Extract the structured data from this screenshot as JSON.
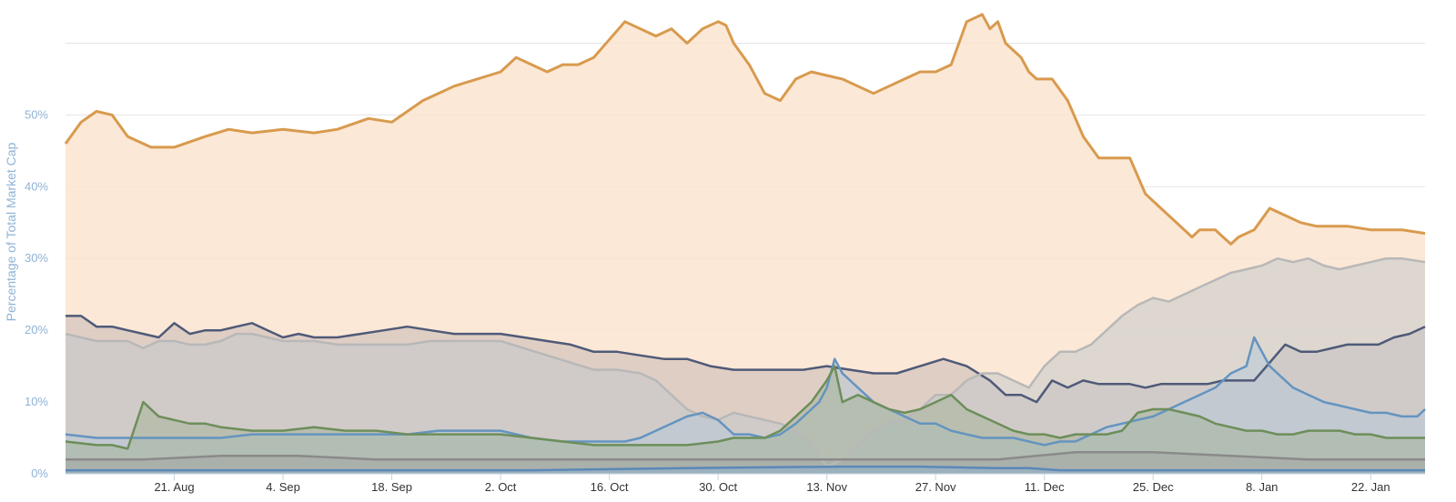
{
  "chart_data": {
    "type": "area",
    "title": "",
    "xlabel": "",
    "ylabel": "Percentage of Total Market Cap",
    "ylim": [
      0,
      65
    ],
    "grid": true,
    "legend": "none",
    "y_ticks": [
      "0%",
      "10%",
      "20%",
      "30%",
      "40%",
      "50%"
    ],
    "y_tick_values": [
      0,
      10,
      20,
      30,
      40,
      50
    ],
    "x_ticks": [
      "21. Aug",
      "4. Sep",
      "18. Sep",
      "2. Oct",
      "16. Oct",
      "30. Oct",
      "13. Nov",
      "27. Nov",
      "11. Dec",
      "25. Dec",
      "8. Jan",
      "22. Jan"
    ],
    "x_tick_days": [
      14,
      28,
      42,
      56,
      70,
      84,
      98,
      112,
      126,
      140,
      154,
      168
    ],
    "x_range_days": [
      0,
      175
    ],
    "series": [
      {
        "color": "#d89a4e",
        "fill": "#fbe4cf",
        "x": [
          0,
          2,
          4,
          6,
          8,
          11,
          14,
          18,
          21,
          24,
          28,
          32,
          35,
          39,
          42,
          46,
          50,
          53,
          56,
          58,
          62,
          64,
          66,
          68,
          72,
          76,
          78,
          80,
          82,
          84,
          85,
          86,
          88,
          90,
          92,
          94,
          96,
          98,
          100,
          102,
          104,
          106,
          108,
          110,
          112,
          114,
          116,
          118,
          119,
          120,
          121,
          123,
          124,
          125,
          127,
          129,
          131,
          133,
          135,
          137,
          139,
          141,
          143,
          145,
          146,
          147,
          148,
          149,
          150,
          151,
          153,
          155,
          157,
          159,
          161,
          163,
          165,
          168,
          172,
          175
        ],
        "values": [
          46,
          49,
          50.5,
          50,
          47,
          45.5,
          45.5,
          47,
          48,
          47.5,
          48,
          47.5,
          48,
          49.5,
          49,
          52,
          54,
          55,
          56,
          58,
          56,
          57,
          57,
          58,
          63,
          61,
          62,
          60,
          62,
          63,
          62.5,
          60,
          57,
          53,
          52,
          55,
          56,
          55.5,
          55,
          54,
          53,
          54,
          55,
          56,
          56,
          57,
          63,
          64,
          62,
          63,
          60,
          58,
          56,
          55,
          55,
          52,
          47,
          44,
          44,
          44,
          39,
          37,
          35,
          33,
          34,
          34,
          34,
          33,
          32,
          33,
          34,
          37,
          36,
          35,
          34.5,
          34.5,
          34.5,
          34,
          34,
          33.5
        ]
      },
      {
        "color": "#4f5a78",
        "fill": "#c7b8b7",
        "x": [
          0,
          2,
          4,
          6,
          8,
          10,
          12,
          14,
          16,
          18,
          20,
          22,
          24,
          26,
          28,
          30,
          32,
          35,
          38,
          41,
          44,
          47,
          50,
          53,
          56,
          59,
          62,
          65,
          68,
          71,
          74,
          77,
          80,
          83,
          86,
          89,
          92,
          95,
          98,
          101,
          104,
          107,
          110,
          113,
          116,
          119,
          121,
          123,
          125,
          127,
          129,
          131,
          133,
          135,
          137,
          139,
          141,
          143,
          145,
          147,
          149,
          151,
          153,
          155,
          157,
          159,
          161,
          163,
          165,
          167,
          169,
          171,
          173,
          175
        ],
        "values": [
          22,
          22,
          20.5,
          20.5,
          20,
          19.5,
          19,
          21,
          19.5,
          20,
          20,
          20.5,
          21,
          20,
          19,
          19.5,
          19,
          19,
          19.5,
          20,
          20.5,
          20,
          19.5,
          19.5,
          19.5,
          19,
          18.5,
          18,
          17,
          17,
          16.5,
          16,
          16,
          15,
          14.5,
          14.5,
          14.5,
          14.5,
          15,
          14.5,
          14,
          14,
          15,
          16,
          15,
          13,
          11,
          11,
          10,
          13,
          12,
          13,
          12.5,
          12.5,
          12.5,
          12,
          12.5,
          12.5,
          12.5,
          12.5,
          13,
          13,
          13,
          15.5,
          18,
          17,
          17,
          17.5,
          18,
          18,
          18,
          19,
          19.5,
          20.5
        ]
      },
      {
        "color": "#b8b8b8",
        "fill": "#c2c9cc",
        "x": [
          0,
          4,
          6,
          8,
          10,
          12,
          14,
          16,
          18,
          20,
          22,
          24,
          26,
          28,
          30,
          32,
          35,
          38,
          41,
          44,
          47,
          50,
          53,
          56,
          59,
          62,
          65,
          68,
          71,
          74,
          76,
          78,
          80,
          82,
          84,
          86,
          88,
          90,
          92,
          94,
          96,
          98,
          100,
          102,
          104,
          106,
          108,
          110,
          112,
          114,
          116,
          118,
          120,
          122,
          124,
          126,
          128,
          130,
          132,
          134,
          136,
          138,
          140,
          142,
          144,
          146,
          148,
          150,
          152,
          154,
          156,
          158,
          160,
          162,
          164,
          166,
          168,
          170,
          172,
          175
        ],
        "values": [
          19.5,
          18.5,
          18.5,
          18.5,
          17.5,
          18.5,
          18.5,
          18,
          18,
          18.5,
          19.5,
          19.5,
          19,
          18.5,
          18.5,
          18.5,
          18,
          18,
          18,
          18,
          18.5,
          18.5,
          18.5,
          18.5,
          17.5,
          16.5,
          15.5,
          14.5,
          14.5,
          14,
          13,
          11,
          9,
          8,
          7.5,
          8.5,
          8,
          7.5,
          7,
          6,
          4,
          1,
          2,
          4,
          6,
          7,
          7.5,
          9,
          11,
          11,
          13,
          14,
          14,
          13,
          12,
          15,
          17,
          17,
          18,
          20,
          22,
          23.5,
          24.5,
          24,
          25,
          26,
          27,
          28,
          28.5,
          29,
          30,
          29.5,
          30,
          29,
          28.5,
          29,
          29.5,
          30,
          30,
          29.5
        ]
      },
      {
        "color": "#6494c0",
        "fill": "#b6c8d8",
        "x": [
          0,
          4,
          8,
          12,
          16,
          20,
          24,
          28,
          32,
          36,
          40,
          44,
          48,
          52,
          56,
          60,
          64,
          68,
          72,
          74,
          76,
          78,
          80,
          82,
          84,
          86,
          88,
          90,
          92,
          94,
          96,
          97,
          98,
          99,
          100,
          102,
          104,
          106,
          108,
          110,
          112,
          114,
          116,
          118,
          120,
          122,
          124,
          126,
          128,
          130,
          132,
          134,
          136,
          138,
          140,
          142,
          144,
          146,
          148,
          150,
          152,
          153,
          154,
          155,
          156,
          158,
          160,
          162,
          164,
          166,
          168,
          170,
          172,
          174,
          175
        ],
        "values": [
          5.5,
          5,
          5,
          5,
          5,
          5,
          5.5,
          5.5,
          5.5,
          5.5,
          5.5,
          5.5,
          6,
          6,
          6,
          5,
          4.5,
          4.5,
          4.5,
          5,
          6,
          7,
          8,
          8.5,
          7.5,
          5.5,
          5.5,
          5,
          5.5,
          7,
          9,
          10,
          12,
          16,
          14,
          12,
          10,
          9,
          8,
          7,
          7,
          6,
          5.5,
          5,
          5,
          5,
          4.5,
          4,
          4.5,
          4.5,
          5.5,
          6.5,
          7,
          7.5,
          8,
          9,
          10,
          11,
          12,
          14,
          15,
          19,
          17,
          15,
          14,
          12,
          11,
          10,
          9.5,
          9,
          8.5,
          8.5,
          8,
          8,
          9
        ]
      },
      {
        "color": "#6d8e5a",
        "fill": "#a6b49a",
        "x": [
          0,
          4,
          6,
          8,
          10,
          12,
          14,
          16,
          18,
          20,
          24,
          28,
          32,
          36,
          40,
          44,
          48,
          52,
          56,
          60,
          64,
          68,
          72,
          76,
          80,
          84,
          86,
          88,
          90,
          92,
          94,
          96,
          98,
          99,
          100,
          102,
          104,
          106,
          108,
          110,
          112,
          114,
          116,
          118,
          120,
          122,
          124,
          126,
          128,
          130,
          132,
          134,
          136,
          138,
          140,
          142,
          144,
          146,
          148,
          150,
          152,
          154,
          156,
          158,
          160,
          162,
          164,
          166,
          168,
          170,
          172,
          175
        ],
        "values": [
          4.5,
          4,
          4,
          3.5,
          10,
          8,
          7.5,
          7,
          7,
          6.5,
          6,
          6,
          6.5,
          6,
          6,
          5.5,
          5.5,
          5.5,
          5.5,
          5,
          4.5,
          4,
          4,
          4,
          4,
          4.5,
          5,
          5,
          5,
          6,
          8,
          10,
          13,
          15,
          10,
          11,
          10,
          9,
          8.5,
          9,
          10,
          11,
          9,
          8,
          7,
          6,
          5.5,
          5.5,
          5,
          5.5,
          5.5,
          5.5,
          6,
          8.5,
          9,
          9,
          8.5,
          8,
          7,
          6.5,
          6,
          6,
          5.5,
          5.5,
          6,
          6,
          6,
          5.5,
          5.5,
          5,
          5,
          5
        ]
      },
      {
        "color": "#8a8a8a",
        "fill": "#a4a6a4",
        "x": [
          0,
          10,
          20,
          30,
          40,
          50,
          60,
          70,
          80,
          90,
          100,
          110,
          120,
          130,
          140,
          150,
          160,
          170,
          175
        ],
        "values": [
          2,
          2,
          2.5,
          2.5,
          2,
          2,
          2,
          2,
          2,
          2,
          2,
          2,
          2,
          3,
          3,
          2.5,
          2,
          2,
          2
        ]
      },
      {
        "color": "#5b88b8",
        "fill": "#8eb0cc",
        "x": [
          0,
          20,
          40,
          60,
          80,
          100,
          110,
          120,
          124,
          128,
          130,
          140,
          150,
          160,
          170,
          175
        ],
        "values": [
          0.5,
          0.5,
          0.5,
          0.5,
          0.8,
          1,
          1,
          0.8,
          0.8,
          0.5,
          0.5,
          0.5,
          0.5,
          0.5,
          0.5,
          0.5
        ]
      }
    ]
  }
}
